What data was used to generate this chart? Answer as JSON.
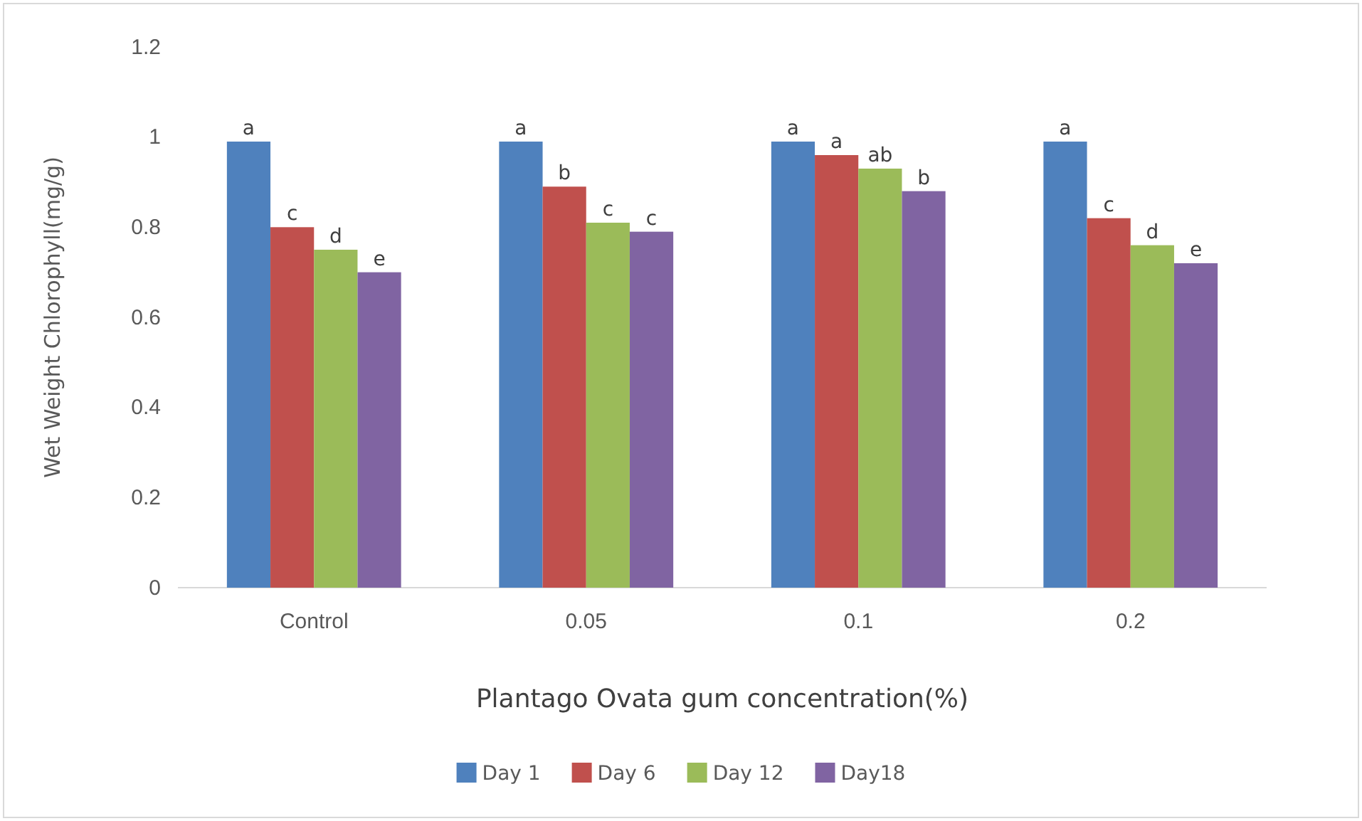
{
  "chart_data": {
    "type": "bar",
    "xlabel": "Plantago Ovata gum concentration(%)",
    "ylabel": "Wet Weight Chlorophyll(mg/g)",
    "categories": [
      "Control",
      "0.05",
      "0.1",
      "0.2"
    ],
    "series": [
      {
        "name": "Day 1",
        "color": "#4f81bd",
        "values": [
          0.99,
          0.99,
          0.99,
          0.99
        ],
        "value_labels": [
          "a",
          "a",
          "a",
          "a"
        ]
      },
      {
        "name": "Day 6",
        "color": "#c0504d",
        "values": [
          0.8,
          0.89,
          0.96,
          0.82
        ],
        "value_labels": [
          "c",
          "b",
          "a",
          "c"
        ]
      },
      {
        "name": "Day 12",
        "color": "#9bbb59",
        "values": [
          0.75,
          0.81,
          0.93,
          0.76
        ],
        "value_labels": [
          "d",
          "c",
          "ab",
          "d"
        ]
      },
      {
        "name": "Day18",
        "color": "#8064a2",
        "values": [
          0.7,
          0.79,
          0.88,
          0.72
        ],
        "value_labels": [
          "e",
          "c",
          "b",
          "e"
        ]
      }
    ],
    "ylim": [
      0,
      1.2
    ],
    "yticks": [
      0,
      0.2,
      0.4,
      0.6,
      0.8,
      1,
      1.2
    ],
    "grid": false,
    "legend": "bottom"
  }
}
